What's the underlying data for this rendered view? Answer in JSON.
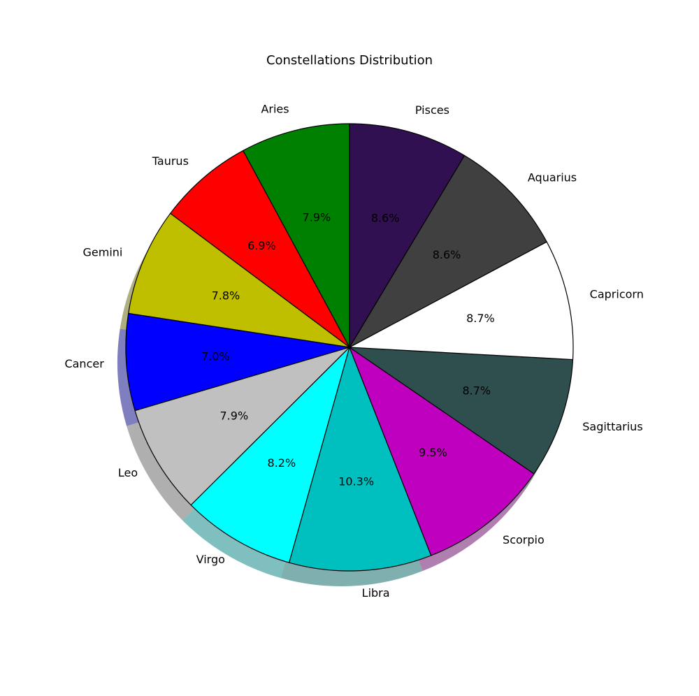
{
  "chart_data": {
    "type": "pie",
    "title": "Constellations Distribution",
    "start_angle_deg": 90,
    "direction": "counterclockwise",
    "shadow": true,
    "slice_edge_color": "#000000",
    "slices": [
      {
        "label": "Aries",
        "value": 7.9,
        "pct_label": "7.9%",
        "color": "#008000"
      },
      {
        "label": "Taurus",
        "value": 6.9,
        "pct_label": "6.9%",
        "color": "#ff0000"
      },
      {
        "label": "Gemini",
        "value": 7.8,
        "pct_label": "7.8%",
        "color": "#bfbf00"
      },
      {
        "label": "Cancer",
        "value": 7.0,
        "pct_label": "7.0%",
        "color": "#0000ff"
      },
      {
        "label": "Leo",
        "value": 7.9,
        "pct_label": "7.9%",
        "color": "#c0c0c0"
      },
      {
        "label": "Virgo",
        "value": 8.2,
        "pct_label": "8.2%",
        "color": "#00ffff"
      },
      {
        "label": "Libra",
        "value": 10.3,
        "pct_label": "10.3%",
        "color": "#00bfbf"
      },
      {
        "label": "Scorpio",
        "value": 9.5,
        "pct_label": "9.5%",
        "color": "#bf00bf"
      },
      {
        "label": "Sagittarius",
        "value": 8.7,
        "pct_label": "8.7%",
        "color": "#2f4f4f"
      },
      {
        "label": "Capricorn",
        "value": 8.7,
        "pct_label": "8.7%",
        "color": "#ffffff"
      },
      {
        "label": "Aquarius",
        "value": 8.6,
        "pct_label": "8.6%",
        "color": "#404040"
      },
      {
        "label": "Pisces",
        "value": 8.6,
        "pct_label": "8.6%",
        "color": "#301050"
      }
    ]
  }
}
